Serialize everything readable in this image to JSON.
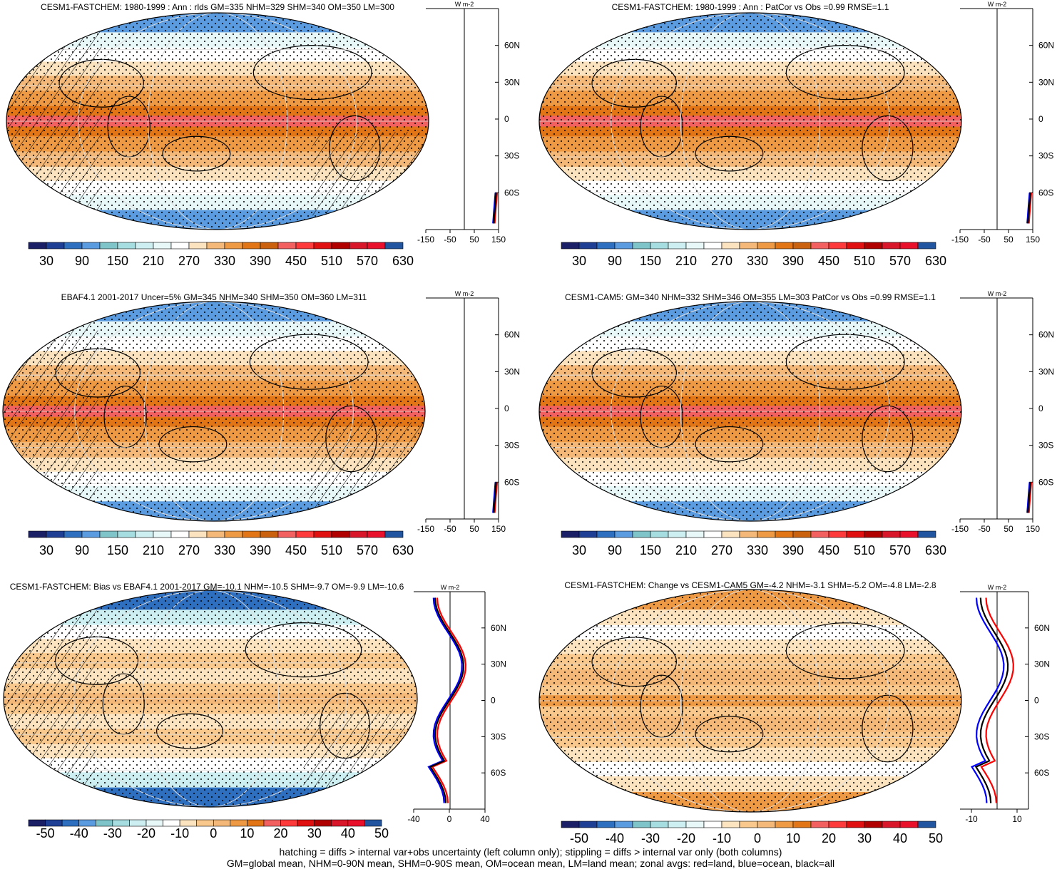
{
  "chart_data": [
    {
      "type": "heatmap",
      "title": "CESM1-FASTCHEM: 1980-1999 : Ann : rlds GM=335 NHM=329 SHM=340 OM=350 LM=300",
      "field": "climatology",
      "hatching": true,
      "colorbar": {
        "ticks": [
          "30",
          "90",
          "150",
          "210",
          "270",
          "330",
          "390",
          "450",
          "510",
          "570",
          "630"
        ]
      },
      "zonal": {
        "unit": "W m-2",
        "xticks": [
          "-150",
          "-50",
          "50",
          "150"
        ],
        "yticks": [
          "60N",
          "30N",
          "0",
          "30S",
          "60S"
        ],
        "xlim": [
          -150,
          150
        ]
      }
    },
    {
      "type": "heatmap",
      "title": "CESM1-FASTCHEM: 1980-1999 : Ann : PatCor vs Obs =0.99 RMSE=1.1",
      "field": "climatology",
      "hatching": false,
      "colorbar": {
        "ticks": [
          "30",
          "90",
          "150",
          "210",
          "270",
          "330",
          "390",
          "450",
          "510",
          "570",
          "630"
        ]
      },
      "zonal": {
        "unit": "W m-2",
        "xticks": [
          "-150",
          "-50",
          "50",
          "150"
        ],
        "yticks": [
          "60N",
          "30N",
          "0",
          "30S",
          "60S"
        ],
        "xlim": [
          -150,
          150
        ]
      }
    },
    {
      "type": "heatmap",
      "title": "EBAF4.1 2001-2017 Uncer=5% GM=345 NHM=340 SHM=350 OM=360 LM=311",
      "field": "climatology",
      "hatching": true,
      "colorbar": {
        "ticks": [
          "30",
          "90",
          "150",
          "210",
          "270",
          "330",
          "390",
          "450",
          "510",
          "570",
          "630"
        ]
      },
      "zonal": {
        "unit": "W m-2",
        "xticks": [
          "-150",
          "-50",
          "50",
          "150"
        ],
        "yticks": [
          "60N",
          "30N",
          "0",
          "30S",
          "60S"
        ],
        "xlim": [
          -150,
          150
        ]
      }
    },
    {
      "type": "heatmap",
      "title": "CESM1-CAM5: GM=340 NHM=332 SHM=346 OM=355 LM=303 PatCor vs Obs =0.99 RMSE=1.1",
      "field": "climatology",
      "hatching": false,
      "colorbar": {
        "ticks": [
          "30",
          "90",
          "150",
          "210",
          "270",
          "330",
          "390",
          "450",
          "510",
          "570",
          "630"
        ]
      },
      "zonal": {
        "unit": "W m-2",
        "xticks": [
          "-150",
          "-50",
          "50",
          "150"
        ],
        "yticks": [
          "60N",
          "30N",
          "0",
          "30S",
          "60S"
        ],
        "xlim": [
          -150,
          150
        ]
      }
    },
    {
      "type": "heatmap",
      "title": "CESM1-FASTCHEM: Bias vs EBAF4.1 2001-2017 GM=-10.1 NHM=-10.5 SHM=-9.7 OM=-9.9 LM=-10.6",
      "field": "bias",
      "hatching": true,
      "colorbar": {
        "ticks": [
          "-50",
          "-40",
          "-30",
          "-20",
          "-10",
          "0",
          "10",
          "20",
          "30",
          "40",
          "50"
        ]
      },
      "zonal": {
        "unit": "W m-2",
        "xticks": [
          "-40",
          "0",
          "40"
        ],
        "yticks": [
          "60N",
          "30N",
          "0",
          "30S",
          "60S"
        ],
        "xlim": [
          -40,
          40
        ]
      }
    },
    {
      "type": "heatmap",
      "title": "CESM1-FASTCHEM: Change vs CESM1-CAM5 GM=-4.2 NHM=-3.1 SHM=-5.2 OM=-4.8 LM=-2.8",
      "field": "change",
      "hatching": false,
      "colorbar": {
        "ticks": [
          "-50",
          "-40",
          "-30",
          "-20",
          "-10",
          "0",
          "10",
          "20",
          "30",
          "40",
          "50"
        ]
      },
      "zonal": {
        "unit": "W m-2",
        "xticks": [
          "-10",
          "10"
        ],
        "yticks": [
          "60N",
          "30N",
          "0",
          "30S",
          "60S"
        ],
        "xlim": [
          -15,
          15
        ]
      }
    }
  ],
  "colors": {
    "climatology": [
      "#1b1f66",
      "#1f3f94",
      "#2f6fc0",
      "#5b9be0",
      "#7fc4c8",
      "#a6dde0",
      "#cdeff2",
      "#e8f7f8",
      "#ffffff",
      "#fbe3bf",
      "#f4b978",
      "#ee9a45",
      "#e27617",
      "#c9610e",
      "#f26060",
      "#ff3a3a",
      "#e01010",
      "#b00000",
      "#d8182a",
      "#e8102a",
      "#2255a0"
    ],
    "anomaly": [
      "#1b1f66",
      "#1f3f94",
      "#2f6fc0",
      "#5b9be0",
      "#7fc4c8",
      "#a6dde0",
      "#cdeff2",
      "#e8f7f8",
      "#ffffff",
      "#fce4c0",
      "#f8c88c",
      "#f4b978",
      "#ee9a45",
      "#e27617",
      "#f26060",
      "#ff3a3a",
      "#e01010",
      "#b00000",
      "#d8182a",
      "#e8102a",
      "#2255a0"
    ],
    "land": "#ff0000",
    "ocean": "#0000ff",
    "all": "#000000"
  },
  "footer": [
    "hatching = diffs > internal var+obs uncertainty (left column only); stippling = diffs > internal var only (both columns)",
    "GM=global mean, NHM=0-90N mean, SHM=0-90S mean, OM=ocean mean, LM=land mean; zonal avgs: red=land, blue=ocean, black=all"
  ]
}
